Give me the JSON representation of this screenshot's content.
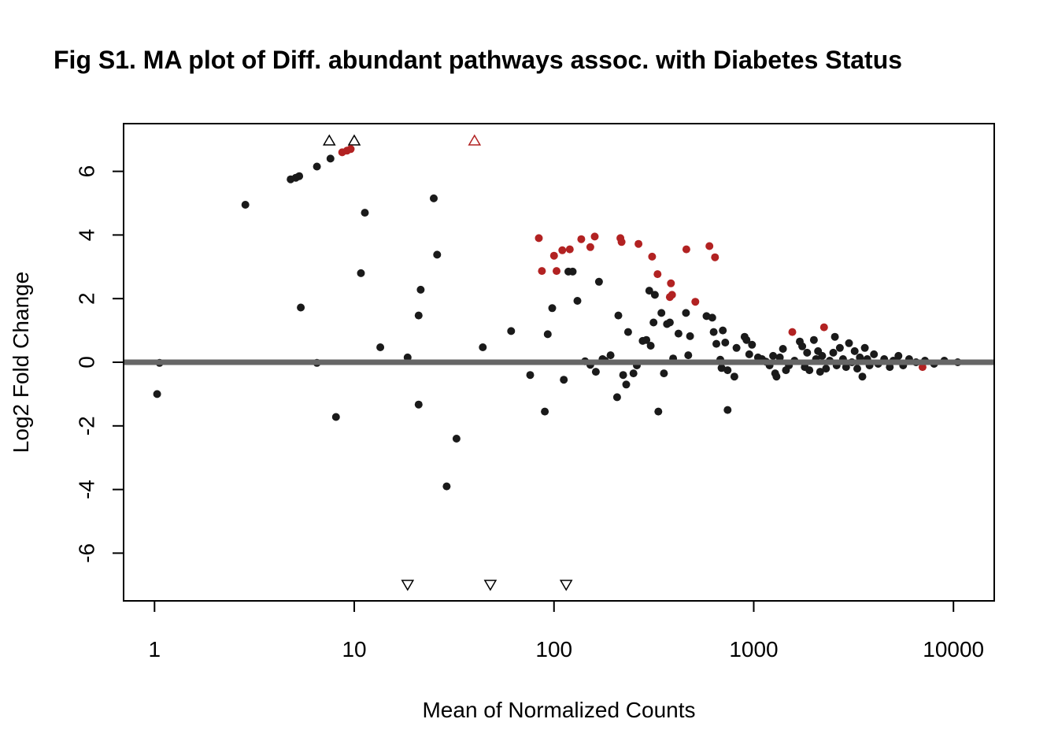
{
  "chart_data": {
    "type": "scatter",
    "title": "Fig S1. MA plot of Diff. abundant pathways assoc. with Diabetes Status",
    "xlabel": "Mean of Normalized Counts",
    "ylabel": "Log2 Fold Change",
    "x_scale": "log10",
    "xlim": [
      0.7,
      16000
    ],
    "ylim": [
      -7.5,
      7.5
    ],
    "x_ticks": [
      1,
      10,
      100,
      1000,
      10000
    ],
    "x_tick_labels": [
      "1",
      "10",
      "100",
      "1000",
      "10000"
    ],
    "y_ticks": [
      -6,
      -4,
      -2,
      0,
      2,
      4,
      6
    ],
    "y_tick_labels": [
      "-6",
      "-4",
      "-2",
      "0",
      "2",
      "4",
      "6"
    ],
    "grid": false,
    "reference_line": {
      "y": 0,
      "color": "#666666"
    },
    "colors": {
      "not_significant": "#1a1a1a",
      "significant": "#b22222"
    },
    "series": [
      {
        "significant": false,
        "points": [
          [
            1.03,
            -1.0
          ],
          [
            1.06,
            -0.02
          ],
          [
            2.85,
            4.95
          ],
          [
            4.8,
            5.75
          ],
          [
            5.1,
            5.8
          ],
          [
            5.3,
            5.85
          ],
          [
            5.4,
            1.72
          ],
          [
            6.5,
            -0.02
          ],
          [
            6.5,
            6.15
          ],
          [
            7.6,
            6.4
          ],
          [
            8.1,
            -1.72
          ],
          [
            10.8,
            2.8
          ],
          [
            11.3,
            4.7
          ],
          [
            13.5,
            0.47
          ],
          [
            18.5,
            0.15
          ],
          [
            21.0,
            -1.33
          ],
          [
            21.0,
            1.47
          ],
          [
            21.5,
            2.28
          ],
          [
            25.0,
            5.15
          ],
          [
            26.0,
            3.38
          ],
          [
            29.0,
            -3.9
          ],
          [
            32.5,
            -2.4
          ],
          [
            44.0,
            0.47
          ],
          [
            61.0,
            0.98
          ],
          [
            76.0,
            -0.4
          ],
          [
            90.0,
            -1.55
          ],
          [
            93.0,
            0.88
          ],
          [
            98.0,
            1.7
          ],
          [
            112.0,
            -0.55
          ],
          [
            118.0,
            2.85
          ],
          [
            124.0,
            2.85
          ],
          [
            131.0,
            1.93
          ],
          [
            143.0,
            0.03
          ],
          [
            152.0,
            -0.08
          ],
          [
            162.0,
            -0.3
          ],
          [
            168.0,
            2.53
          ],
          [
            175.0,
            0.1
          ],
          [
            180.0,
            0.05
          ],
          [
            192.0,
            0.22
          ],
          [
            207.0,
            -1.1
          ],
          [
            210.0,
            1.47
          ],
          [
            222.0,
            -0.4
          ],
          [
            230.0,
            -0.7
          ],
          [
            235.0,
            0.95
          ],
          [
            250.0,
            -0.35
          ],
          [
            260.0,
            -0.1
          ],
          [
            278.0,
            0.67
          ],
          [
            290.0,
            0.7
          ],
          [
            300.0,
            2.25
          ],
          [
            305.0,
            0.52
          ],
          [
            315.0,
            1.25
          ],
          [
            320.0,
            2.12
          ],
          [
            333.0,
            -1.55
          ],
          [
            345.0,
            1.55
          ],
          [
            355.0,
            -0.35
          ],
          [
            368.0,
            1.2
          ],
          [
            380.0,
            1.25
          ],
          [
            395.0,
            0.12
          ],
          [
            420.0,
            0.9
          ],
          [
            458.0,
            1.55
          ],
          [
            480.0,
            0.82
          ],
          [
            470.0,
            0.22
          ],
          [
            580.0,
            1.45
          ],
          [
            620.0,
            1.4
          ],
          [
            630.0,
            0.95
          ],
          [
            650.0,
            0.58
          ],
          [
            680.0,
            0.08
          ],
          [
            690.0,
            -0.18
          ],
          [
            700.0,
            1.0
          ],
          [
            720.0,
            0.62
          ],
          [
            740.0,
            -0.25
          ],
          [
            740.0,
            -1.5
          ],
          [
            800.0,
            -0.45
          ],
          [
            820.0,
            0.45
          ],
          [
            900.0,
            0.8
          ],
          [
            920.0,
            0.7
          ],
          [
            950.0,
            0.25
          ],
          [
            980.0,
            0.55
          ],
          [
            1050.0,
            0.15
          ],
          [
            1100.0,
            0.1
          ],
          [
            1150.0,
            0.02
          ],
          [
            1200.0,
            -0.1
          ],
          [
            1250.0,
            0.2
          ],
          [
            1280.0,
            -0.35
          ],
          [
            1300.0,
            -0.45
          ],
          [
            1350.0,
            0.15
          ],
          [
            1400.0,
            0.42
          ],
          [
            1450.0,
            -0.25
          ],
          [
            1500.0,
            -0.1
          ],
          [
            1600.0,
            0.05
          ],
          [
            1700.0,
            0.65
          ],
          [
            1750.0,
            0.5
          ],
          [
            1800.0,
            -0.15
          ],
          [
            1850.0,
            0.3
          ],
          [
            1900.0,
            -0.25
          ],
          [
            2000.0,
            0.7
          ],
          [
            2050.0,
            0.1
          ],
          [
            2100.0,
            0.35
          ],
          [
            2150.0,
            -0.3
          ],
          [
            2200.0,
            0.2
          ],
          [
            2300.0,
            -0.2
          ],
          [
            2400.0,
            0.05
          ],
          [
            2500.0,
            0.3
          ],
          [
            2550.0,
            0.8
          ],
          [
            2600.0,
            -0.1
          ],
          [
            2700.0,
            0.45
          ],
          [
            2800.0,
            0.1
          ],
          [
            2900.0,
            -0.15
          ],
          [
            3000.0,
            0.6
          ],
          [
            3100.0,
            0.0
          ],
          [
            3200.0,
            0.35
          ],
          [
            3300.0,
            -0.2
          ],
          [
            3400.0,
            0.15
          ],
          [
            3500.0,
            -0.45
          ],
          [
            3600.0,
            0.45
          ],
          [
            3700.0,
            0.1
          ],
          [
            3800.0,
            -0.1
          ],
          [
            4000.0,
            0.25
          ],
          [
            4200.0,
            -0.05
          ],
          [
            4500.0,
            0.1
          ],
          [
            4800.0,
            -0.15
          ],
          [
            5000.0,
            0.05
          ],
          [
            5300.0,
            0.2
          ],
          [
            5600.0,
            -0.1
          ],
          [
            6000.0,
            0.1
          ],
          [
            6500.0,
            0.0
          ],
          [
            7200.0,
            0.05
          ],
          [
            8000.0,
            -0.05
          ],
          [
            9000.0,
            0.05
          ],
          [
            10500.0,
            0.0
          ]
        ],
        "off_scale": [
          [
            7.5,
            "up"
          ],
          [
            10.0,
            "up"
          ],
          [
            18.5,
            "down"
          ],
          [
            48.0,
            "down"
          ],
          [
            115.0,
            "down"
          ]
        ]
      },
      {
        "significant": true,
        "points": [
          [
            8.7,
            6.6
          ],
          [
            9.2,
            6.65
          ],
          [
            9.6,
            6.7
          ],
          [
            84.0,
            3.9
          ],
          [
            87.0,
            2.87
          ],
          [
            100.0,
            3.35
          ],
          [
            103.0,
            2.87
          ],
          [
            110.0,
            3.52
          ],
          [
            120.0,
            3.55
          ],
          [
            137.0,
            3.87
          ],
          [
            152.0,
            3.62
          ],
          [
            160.0,
            3.95
          ],
          [
            215.0,
            3.9
          ],
          [
            218.0,
            3.78
          ],
          [
            265.0,
            3.72
          ],
          [
            310.0,
            3.32
          ],
          [
            330.0,
            2.77
          ],
          [
            380.0,
            2.05
          ],
          [
            385.0,
            2.48
          ],
          [
            390.0,
            2.12
          ],
          [
            460.0,
            3.55
          ],
          [
            510.0,
            1.9
          ],
          [
            600.0,
            3.65
          ],
          [
            640.0,
            3.3
          ],
          [
            1560.0,
            0.95
          ],
          [
            2250.0,
            1.1
          ],
          [
            7000.0,
            -0.15
          ]
        ],
        "off_scale": [
          [
            40.0,
            "up"
          ]
        ]
      }
    ]
  }
}
